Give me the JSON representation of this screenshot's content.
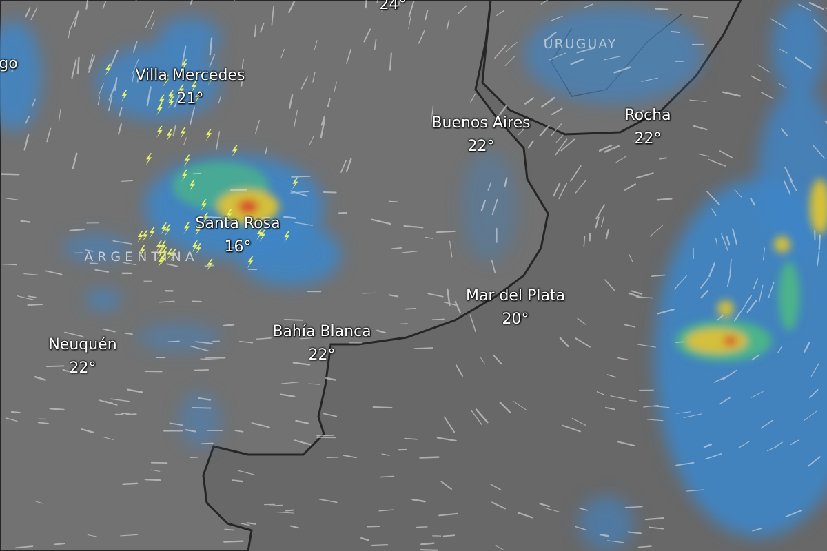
{
  "map": {
    "layer": "rain-thunder-wind",
    "colors": {
      "land": "#707070",
      "sea": "#666666",
      "coast": "#2a2a2a",
      "rain_light": "#3f86c8",
      "rain_mid": "#4bb38a",
      "rain_heavy": "#d4c03a",
      "rain_extreme": "#d6402c",
      "thunder": "#e6f06a",
      "wind": "#e8e8e8"
    },
    "countries": [
      {
        "name": "URUGUAY"
      },
      {
        "name": "ARGENTINA"
      }
    ],
    "cities": [
      {
        "name": "",
        "temp": "24°"
      },
      {
        "name": "go",
        "temp": ""
      },
      {
        "name": "Villa Mercedes",
        "temp": "21°"
      },
      {
        "name": "Buenos Aires",
        "temp": "22°"
      },
      {
        "name": "Rocha",
        "temp": "22°"
      },
      {
        "name": "Santa Rosa",
        "temp": "16°"
      },
      {
        "name": "Mar del Plata",
        "temp": "20°"
      },
      {
        "name": "Bahía Blanca",
        "temp": "22°"
      },
      {
        "name": "Neuquén",
        "temp": "22°"
      }
    ]
  }
}
